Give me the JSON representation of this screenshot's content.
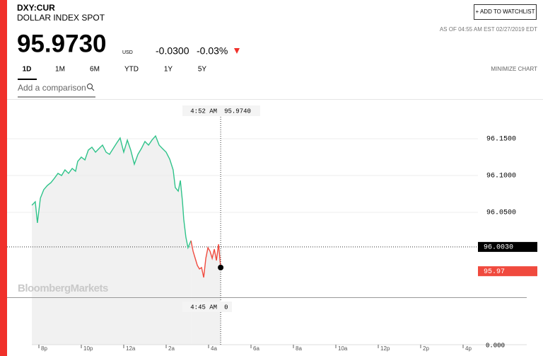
{
  "header": {
    "ticker": "DXY:CUR",
    "name": "DOLLAR INDEX SPOT",
    "price": "95.9730",
    "currency": "USD",
    "change": "-0.0300",
    "change_pct": "-0.03%",
    "watchlist_button": "+ ADD TO WATCHLIST",
    "timestamp": "AS OF 04:55 AM EST 02/27/2019 EDT"
  },
  "tabs": [
    "1D",
    "1M",
    "6M",
    "YTD",
    "1Y",
    "5Y"
  ],
  "minimize": "MINIMIZE CHART",
  "comparison_placeholder": "Add a comparison",
  "watermark": "BloombergMarkets",
  "chart_data": {
    "type": "line",
    "xlim": [
      18.5,
      43
    ],
    "ylim": [
      95.935,
      96.2
    ],
    "xticks": [
      {
        "value": 20,
        "label": "8p"
      },
      {
        "value": 22,
        "label": "10p"
      },
      {
        "value": 24,
        "label": "12a"
      },
      {
        "value": 26,
        "label": "2a"
      },
      {
        "value": 28,
        "label": "4a"
      },
      {
        "value": 30,
        "label": "6a"
      },
      {
        "value": 32,
        "label": "8a"
      },
      {
        "value": 34,
        "label": "10a"
      },
      {
        "value": 36,
        "label": "12p"
      },
      {
        "value": 38,
        "label": "2p"
      },
      {
        "value": 40,
        "label": "4p"
      }
    ],
    "yticks": [
      {
        "value": 96.15,
        "label": "96.1500"
      },
      {
        "value": 96.1,
        "label": "96.1000"
      },
      {
        "value": 96.05,
        "label": "96.0500"
      }
    ],
    "series": [
      {
        "color": "#2fc38a",
        "x": [
          19.67,
          19.83,
          19.93,
          20.07,
          20.23,
          20.4,
          20.57,
          20.73,
          20.9,
          21.07,
          21.23,
          21.4,
          21.57,
          21.73,
          21.83,
          22,
          22.17,
          22.33,
          22.5,
          22.67,
          22.83,
          23,
          23.17,
          23.33,
          23.5,
          23.67,
          23.83,
          24,
          24.17,
          24.33,
          24.5,
          24.67,
          24.83,
          25,
          25.17,
          25.33,
          25.5,
          25.67,
          25.83,
          26,
          26.17,
          26.33,
          26.43,
          26.57,
          26.67,
          26.77,
          26.83,
          26.93,
          27.03,
          27.17
        ],
        "values": [
          96.0596,
          96.0644,
          96.0356,
          96.0692,
          96.0808,
          96.0865,
          96.0904,
          96.0962,
          96.1029,
          96.1,
          96.1077,
          96.1029,
          96.1096,
          96.1058,
          96.1192,
          96.125,
          96.1212,
          96.1346,
          96.1385,
          96.1317,
          96.1365,
          96.1413,
          96.1317,
          96.1288,
          96.1365,
          96.1442,
          96.151,
          96.1317,
          96.1481,
          96.1346,
          96.1154,
          96.1288,
          96.1365,
          96.1462,
          96.1413,
          96.1481,
          96.1538,
          96.1413,
          96.1365,
          96.1317,
          96.1221,
          96.1077,
          96.0837,
          96.0788,
          96.0933,
          96.0644,
          96.0404,
          96.0163,
          96.0019,
          96.0115
        ]
      },
      {
        "color": "#f04a3e",
        "x": [
          27.17,
          27.27,
          27.37,
          27.47,
          27.57,
          27.67,
          27.77,
          27.87,
          27.97,
          28.07,
          28.17,
          28.27,
          28.37,
          28.47,
          28.57
        ],
        "values": [
          96.0115,
          95.9971,
          95.9875,
          95.9779,
          95.9731,
          95.975,
          95.9615,
          95.9875,
          96.0019,
          95.9971,
          95.9875,
          96.0,
          95.9846,
          96.0067,
          95.975
        ]
      }
    ],
    "crosshair": {
      "time": "4:52 AM",
      "value": "95.9740"
    },
    "volume_crosshair": {
      "time": "4:45 AM",
      "value": "0"
    },
    "previous_close": {
      "value": 96.003,
      "label": "96.0030"
    },
    "last": {
      "value": 95.97,
      "label": "95.97"
    },
    "volume_axis_label": "0.000"
  }
}
